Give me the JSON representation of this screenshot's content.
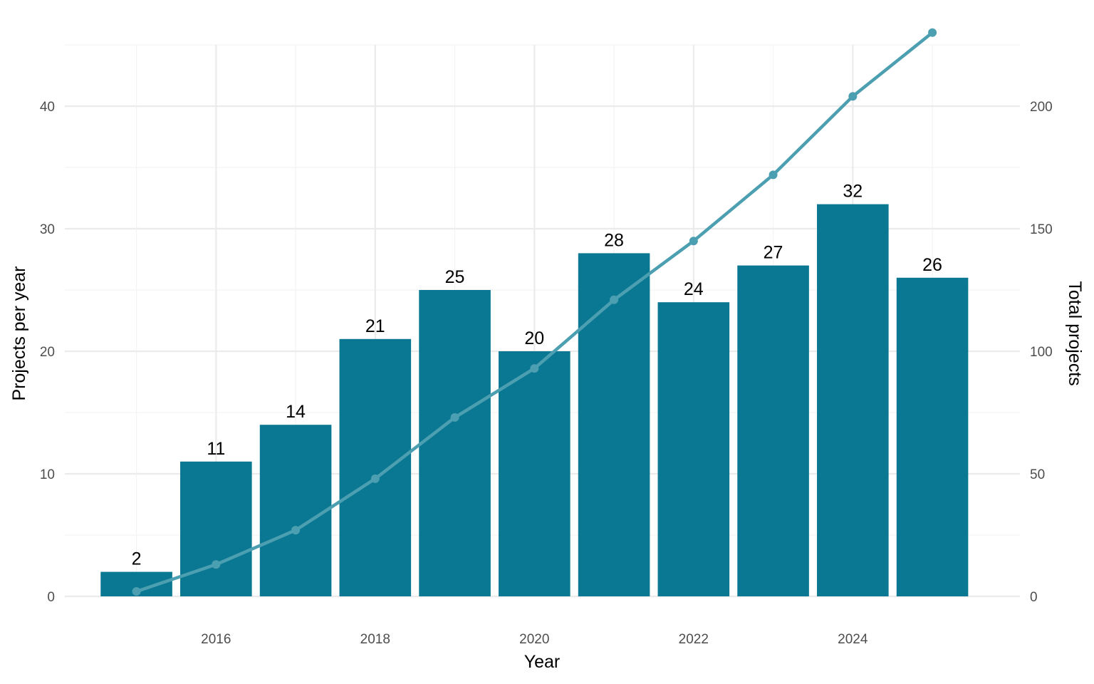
{
  "chart_data": {
    "type": "bar",
    "title": "",
    "xlabel": "Year",
    "ylabel": "Projects per year",
    "ylabel_right": "Total projects",
    "x": [
      2015,
      2016,
      2017,
      2018,
      2019,
      2020,
      2021,
      2022,
      2023,
      2024,
      2025
    ],
    "x_ticks": [
      "2016",
      "2018",
      "2020",
      "2022",
      "2024"
    ],
    "x_tick_values": [
      2016,
      2018,
      2020,
      2022,
      2024
    ],
    "xlim": [
      2014.1,
      2026.1
    ],
    "ylim": [
      0,
      45
    ],
    "y_ticks": [
      "0",
      "10",
      "20",
      "30",
      "40"
    ],
    "y_tick_values": [
      0,
      10,
      20,
      30,
      40
    ],
    "y2lim": [
      0,
      225
    ],
    "y2_ticks": [
      "0",
      "50",
      "100",
      "150",
      "200"
    ],
    "y2_tick_values": [
      0,
      50,
      100,
      150,
      200
    ],
    "grid": true,
    "series": [
      {
        "type": "bar",
        "axis": "left",
        "values": [
          2,
          11,
          14,
          21,
          25,
          20,
          28,
          24,
          27,
          32,
          26
        ],
        "labels": [
          "2",
          "11",
          "14",
          "21",
          "25",
          "20",
          "28",
          "24",
          "27",
          "32",
          "26"
        ],
        "color": "#0a7892"
      },
      {
        "type": "line",
        "axis": "right",
        "values": [
          2,
          13,
          27,
          48,
          73,
          93,
          121,
          145,
          172,
          204,
          230
        ],
        "color": "#4c9fb0"
      }
    ]
  }
}
